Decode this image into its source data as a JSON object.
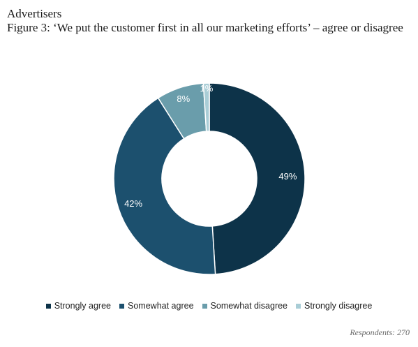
{
  "header": {
    "section": "Advertisers",
    "title": "Figure 3: ‘We put the customer first in all our marketing efforts’ – agree or disagree"
  },
  "source": "Respondents: 270",
  "chart_data": {
    "type": "pie",
    "donut": true,
    "categories": [
      "Strongly agree",
      "Somewhat agree",
      "Somewhat disagree",
      "Strongly disagree"
    ],
    "values": [
      49,
      42,
      8,
      1
    ],
    "labels": [
      "49%",
      "42%",
      "8%",
      "1%"
    ],
    "colors": [
      "#0d3349",
      "#1c506e",
      "#6a9dab",
      "#a9cdd6"
    ],
    "legend_position": "bottom"
  }
}
